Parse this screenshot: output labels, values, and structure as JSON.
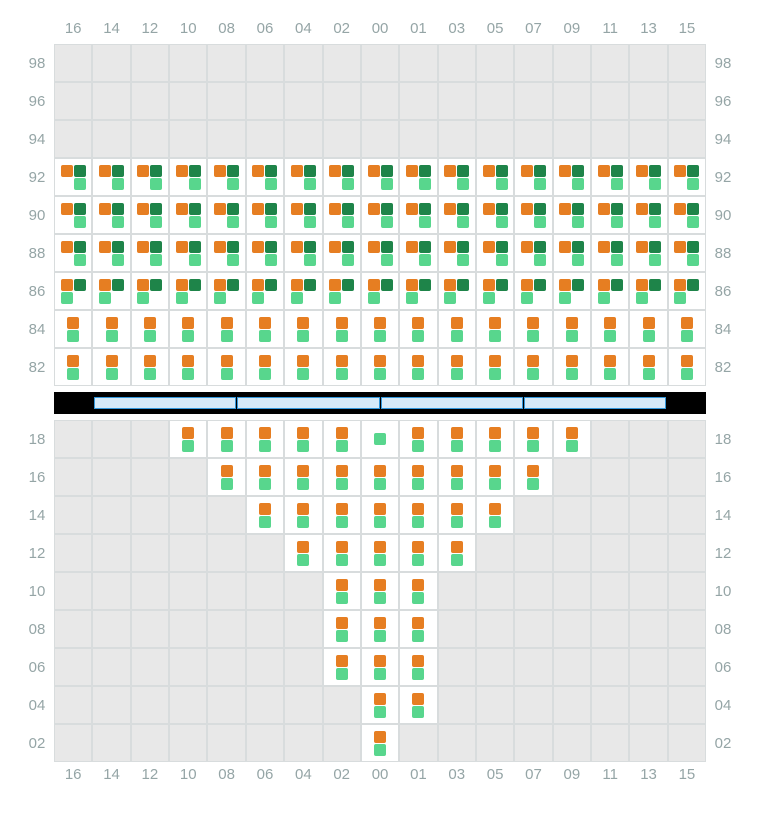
{
  "colors": {
    "orange": "#e67e22",
    "lightGreen": "#58d68d",
    "darkGreen": "#1e8449",
    "emptyCell": "#e8e8e8",
    "occupiedCell": "#ffffff",
    "cellBorder": "#d8dcdd",
    "labelText": "#95a5a6",
    "dividerBg": "#000000",
    "dividerSeg": "#d6eaf8",
    "dividerSegBorder": "#3498db"
  },
  "columns": [
    "16",
    "14",
    "12",
    "10",
    "08",
    "06",
    "04",
    "02",
    "00",
    "01",
    "03",
    "05",
    "07",
    "09",
    "11",
    "13",
    "15"
  ],
  "upper": {
    "rows": [
      {
        "label": "98",
        "cells": [
          0,
          0,
          0,
          0,
          0,
          0,
          0,
          0,
          0,
          0,
          0,
          0,
          0,
          0,
          0,
          0,
          0
        ]
      },
      {
        "label": "96",
        "cells": [
          0,
          0,
          0,
          0,
          0,
          0,
          0,
          0,
          0,
          0,
          0,
          0,
          0,
          0,
          0,
          0,
          0
        ]
      },
      {
        "label": "94",
        "cells": [
          0,
          0,
          0,
          0,
          0,
          0,
          0,
          0,
          0,
          0,
          0,
          0,
          0,
          0,
          0,
          0,
          0
        ]
      },
      {
        "label": "92",
        "cells": [
          1,
          1,
          1,
          1,
          1,
          1,
          1,
          1,
          1,
          1,
          1,
          1,
          1,
          1,
          1,
          1,
          1
        ]
      },
      {
        "label": "90",
        "cells": [
          1,
          1,
          1,
          1,
          1,
          1,
          1,
          1,
          1,
          1,
          1,
          1,
          1,
          1,
          1,
          1,
          1
        ]
      },
      {
        "label": "88",
        "cells": [
          1,
          1,
          1,
          1,
          1,
          1,
          1,
          1,
          1,
          1,
          1,
          1,
          1,
          1,
          1,
          1,
          1
        ]
      },
      {
        "label": "86",
        "cells": [
          2,
          2,
          2,
          2,
          2,
          2,
          2,
          2,
          2,
          2,
          2,
          2,
          2,
          2,
          2,
          2,
          2
        ]
      },
      {
        "label": "84",
        "cells": [
          3,
          3,
          3,
          3,
          3,
          3,
          3,
          3,
          3,
          3,
          3,
          3,
          3,
          3,
          3,
          3,
          3
        ]
      },
      {
        "label": "82",
        "cells": [
          3,
          3,
          3,
          3,
          3,
          3,
          3,
          3,
          3,
          3,
          3,
          3,
          3,
          3,
          3,
          3,
          3
        ]
      }
    ]
  },
  "lower": {
    "rows": [
      {
        "label": "18",
        "cells": [
          0,
          0,
          0,
          3,
          3,
          3,
          3,
          3,
          4,
          3,
          3,
          3,
          3,
          3,
          0,
          0,
          0
        ]
      },
      {
        "label": "16",
        "cells": [
          0,
          0,
          0,
          0,
          3,
          3,
          3,
          3,
          3,
          3,
          3,
          3,
          3,
          0,
          0,
          0,
          0
        ]
      },
      {
        "label": "14",
        "cells": [
          0,
          0,
          0,
          0,
          0,
          3,
          3,
          3,
          3,
          3,
          3,
          3,
          0,
          0,
          0,
          0,
          0
        ]
      },
      {
        "label": "12",
        "cells": [
          0,
          0,
          0,
          0,
          0,
          0,
          3,
          3,
          3,
          3,
          3,
          0,
          0,
          0,
          0,
          0,
          0
        ]
      },
      {
        "label": "10",
        "cells": [
          0,
          0,
          0,
          0,
          0,
          0,
          0,
          3,
          3,
          3,
          0,
          0,
          0,
          0,
          0,
          0,
          0
        ]
      },
      {
        "label": "08",
        "cells": [
          0,
          0,
          0,
          0,
          0,
          0,
          0,
          3,
          3,
          3,
          0,
          0,
          0,
          0,
          0,
          0,
          0
        ]
      },
      {
        "label": "06",
        "cells": [
          0,
          0,
          0,
          0,
          0,
          0,
          0,
          3,
          3,
          3,
          0,
          0,
          0,
          0,
          0,
          0,
          0
        ]
      },
      {
        "label": "04",
        "cells": [
          0,
          0,
          0,
          0,
          0,
          0,
          0,
          0,
          3,
          3,
          0,
          0,
          0,
          0,
          0,
          0,
          0
        ]
      },
      {
        "label": "02",
        "cells": [
          0,
          0,
          0,
          0,
          0,
          0,
          0,
          0,
          3,
          0,
          0,
          0,
          0,
          0,
          0,
          0,
          0
        ]
      }
    ]
  },
  "cellPatterns": {
    "0": {
      "occupied": false,
      "rows": []
    },
    "1": {
      "occupied": true,
      "rows": [
        [
          "orange",
          "darkGreen"
        ],
        [
          "none",
          "lightGreen"
        ]
      ]
    },
    "2": {
      "occupied": true,
      "rows": [
        [
          "orange",
          "darkGreen"
        ],
        [
          "lightGreen",
          "none"
        ]
      ]
    },
    "3": {
      "occupied": true,
      "rows": [
        [
          "orange"
        ],
        [
          "lightGreen"
        ]
      ]
    },
    "4": {
      "occupied": true,
      "rows": [
        [
          "lightGreen"
        ]
      ]
    }
  },
  "dividerSegs": 4
}
